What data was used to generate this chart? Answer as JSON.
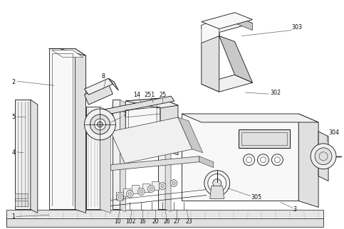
{
  "bg_color": "#ffffff",
  "line_color": "#333333",
  "dark_line": "#111111",
  "figsize": [
    4.83,
    3.22
  ],
  "dpi": 100,
  "face_colors": {
    "light": "#f0f0f0",
    "mid": "#e0e0e0",
    "dark": "#c8c8c8",
    "vlight": "#f8f8f8"
  }
}
